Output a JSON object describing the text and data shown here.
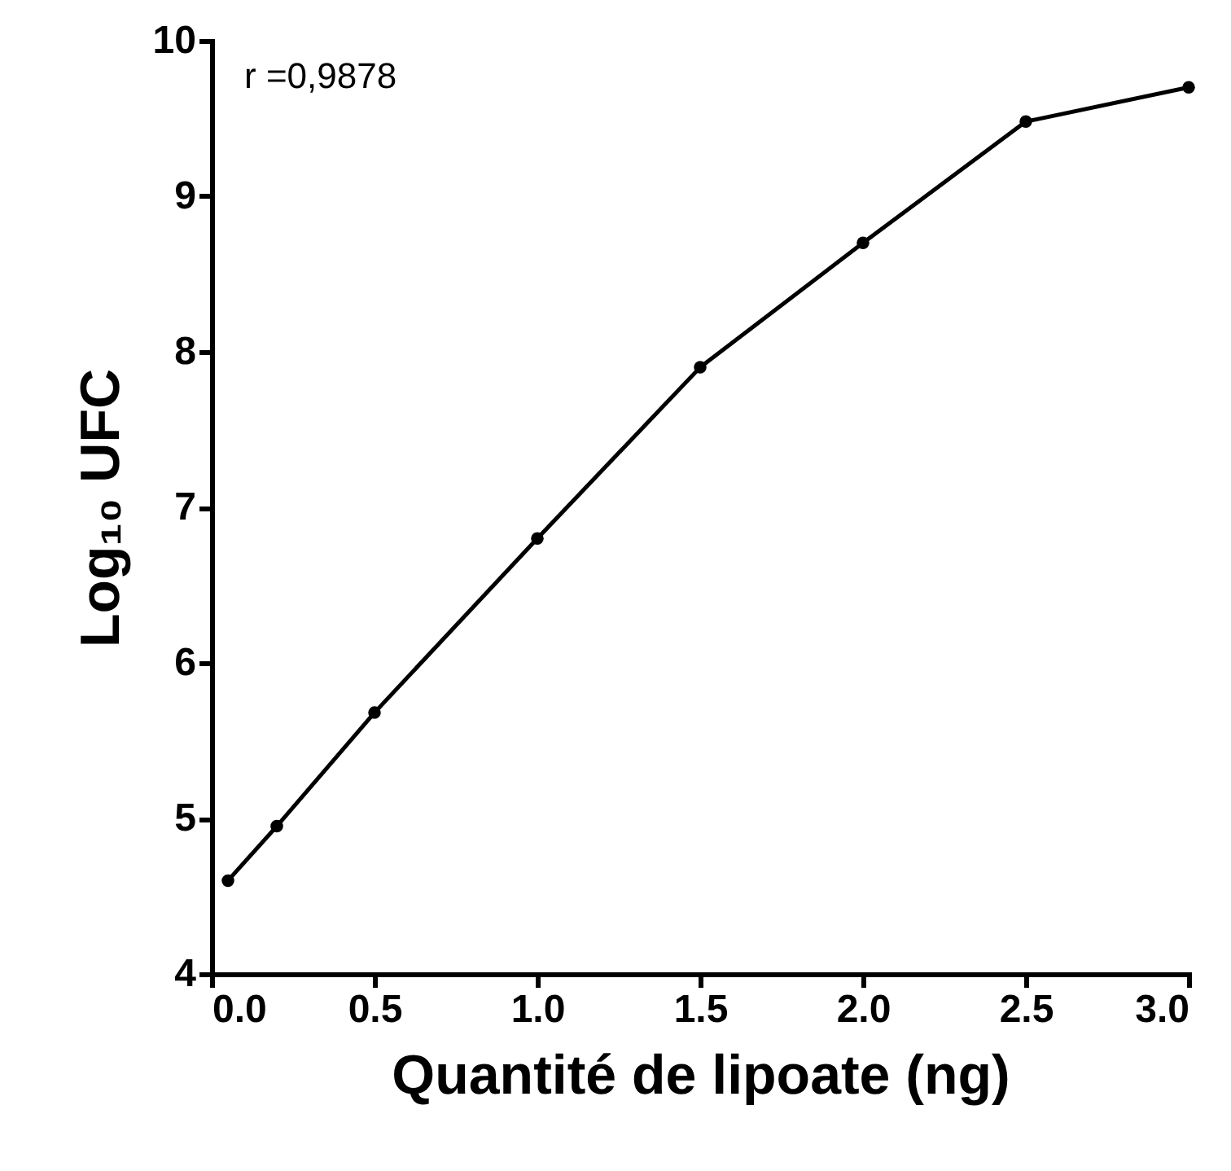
{
  "chart_data": {
    "type": "line",
    "xlabel": "Quantité de lipoate (ng)",
    "ylabel": "Log₁₀ UFC",
    "annotations": [
      "r =0,9878"
    ],
    "x": [
      0.05,
      0.2,
      0.5,
      1.0,
      1.5,
      2.0,
      2.5,
      3.0
    ],
    "series": [
      {
        "color": "#000000",
        "values": [
          4.6,
          4.95,
          5.68,
          6.8,
          7.9,
          8.7,
          9.48,
          9.7
        ]
      }
    ],
    "xlim": [
      0,
      3
    ],
    "ylim": [
      4,
      10
    ],
    "xticks": [
      {
        "value": 0,
        "label": "0.0"
      },
      {
        "value": 0.5,
        "label": "0.5"
      },
      {
        "value": 1,
        "label": "1.0"
      },
      {
        "value": 1.5,
        "label": "1.5"
      },
      {
        "value": 2,
        "label": "2.0"
      },
      {
        "value": 2.5,
        "label": "2.5"
      },
      {
        "value": 3,
        "label": "3.0"
      }
    ],
    "yticks": [
      4,
      5,
      6,
      7,
      8,
      9,
      10
    ],
    "grid": false,
    "legend": false,
    "marker": "circle",
    "line_style": "solid"
  }
}
